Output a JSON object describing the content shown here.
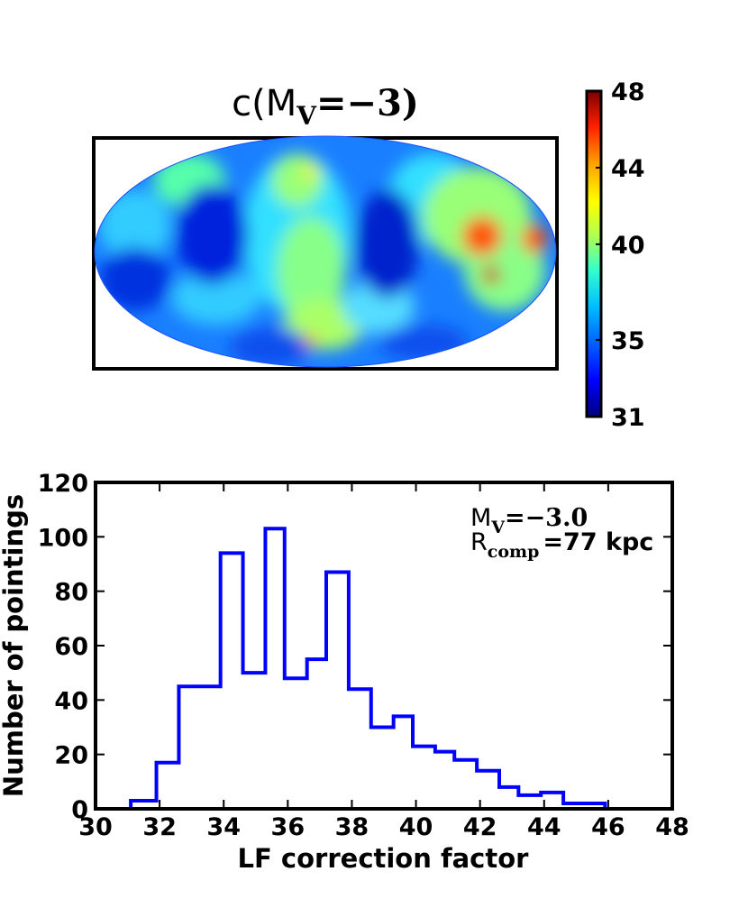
{
  "chart_data": [
    {
      "type": "heatmap",
      "projection": "mollweide",
      "title_prefix": "c(",
      "title_m": "M",
      "title_sub": "V",
      "title_eq": "=−3)",
      "colorbar": {
        "min": 31,
        "max": 48,
        "ticks": [
          48,
          44,
          40,
          35,
          31
        ],
        "colormap": [
          "#00007f",
          "#0000ff",
          "#007fff",
          "#00ffff",
          "#7fff7f",
          "#ffff00",
          "#ff7f00",
          "#ff0000",
          "#7f0000"
        ]
      }
    },
    {
      "type": "bar",
      "style": "step-histogram",
      "series_color": "#0000ff",
      "bin_edges": [
        31.1,
        31.9,
        32.6,
        33.9,
        34.6,
        35.3,
        35.9,
        36.6,
        37.2,
        37.9,
        38.6,
        39.3,
        39.9,
        40.6,
        41.2,
        41.9,
        42.6,
        43.2,
        43.9,
        44.6,
        45.9
      ],
      "values": [
        3,
        17,
        45,
        94,
        50,
        103,
        48,
        55,
        87,
        44,
        30,
        34,
        23,
        21,
        18,
        14,
        8,
        5,
        6,
        2
      ],
      "xlabel": "LF correction factor",
      "ylabel": "Number of pointings",
      "xlim": [
        30,
        48
      ],
      "ylim": [
        0,
        120
      ],
      "xticks": [
        30,
        32,
        34,
        36,
        38,
        40,
        42,
        44,
        46,
        48
      ],
      "yticks": [
        0,
        20,
        40,
        60,
        80,
        100,
        120
      ],
      "annotation": {
        "m_label": "M",
        "m_sub": "V",
        "m_value": "=−3.0",
        "r_label": "R",
        "r_sub": "comp",
        "r_value": "=77 kpc"
      }
    }
  ]
}
